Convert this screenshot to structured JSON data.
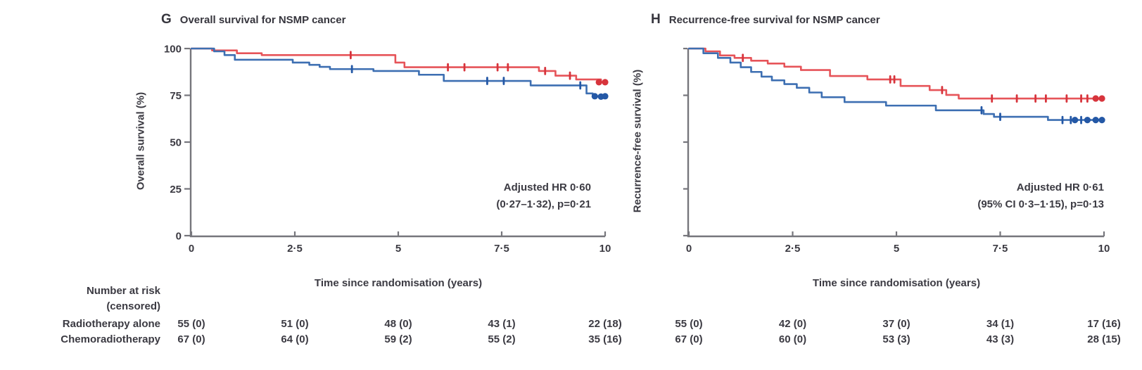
{
  "figure": {
    "xlabel": "Time since randomisation (years)",
    "risk_header_line1": "Number at risk",
    "risk_header_line2": "(censored)",
    "risk_rows": [
      "Radiotherapy alone",
      "Chemoradiotherapy"
    ]
  },
  "colors": {
    "red": "#e65459",
    "red_dark": "#d7343c",
    "blue": "#3d6fb2",
    "blue_dark": "#2458a6",
    "axis": "#76767c",
    "text": "#3b3a42"
  },
  "chart_data": [
    {
      "type": "line",
      "panel_letter": "G",
      "title": "Overall survival for NSMP cancer",
      "ylabel": "Overall survival (%)",
      "xlabel": "Time since randomisation (years)",
      "xlim": [
        0,
        10
      ],
      "ylim": [
        0,
        100
      ],
      "grid": false,
      "xticks": [
        {
          "v": 0,
          "label": "0"
        },
        {
          "v": 2.5,
          "label": "2·5"
        },
        {
          "v": 5,
          "label": "5"
        },
        {
          "v": 7.5,
          "label": "7·5"
        },
        {
          "v": 10,
          "label": "10"
        }
      ],
      "yticks": [
        {
          "v": 100,
          "label": "100"
        },
        {
          "v": 75,
          "label": "75"
        },
        {
          "v": 50,
          "label": "50"
        },
        {
          "v": 25,
          "label": "25"
        },
        {
          "v": 0,
          "label": "0"
        }
      ],
      "show_ytick_labels": true,
      "annotation": [
        "Adjusted HR 0·60",
        "(0·27–1·32), p=0·21"
      ],
      "series": [
        {
          "name": "Radiotherapy alone",
          "color": "red",
          "points": [
            [
              0,
              100
            ],
            [
              0.5,
              99
            ],
            [
              1.1,
              97.5
            ],
            [
              1.7,
              96.5
            ],
            [
              4.93,
              92.5
            ],
            [
              5.15,
              90
            ],
            [
              8.4,
              88
            ],
            [
              8.8,
              85.5
            ],
            [
              9.3,
              83.5
            ],
            [
              9.9,
              82
            ],
            [
              10,
              82
            ]
          ],
          "censors": [
            [
              3.85,
              96.5
            ],
            [
              6.2,
              90
            ],
            [
              6.6,
              90
            ],
            [
              7.4,
              90
            ],
            [
              7.65,
              90
            ],
            [
              8.55,
              88
            ],
            [
              9.15,
              85.5
            ]
          ],
          "end_dots": [
            [
              9.85,
              82
            ],
            [
              10,
              82
            ]
          ]
        },
        {
          "name": "Chemoradiotherapy",
          "color": "blue",
          "points": [
            [
              0,
              100
            ],
            [
              0.55,
              98.5
            ],
            [
              0.8,
              96.5
            ],
            [
              1.05,
              94
            ],
            [
              2.45,
              92.5
            ],
            [
              2.85,
              91.3
            ],
            [
              3.1,
              90.2
            ],
            [
              3.35,
              89
            ],
            [
              4.4,
              88
            ],
            [
              5.5,
              86
            ],
            [
              6.1,
              82.7
            ],
            [
              8.2,
              80.3
            ],
            [
              9.55,
              76
            ],
            [
              9.7,
              74.5
            ],
            [
              10,
              74.5
            ]
          ],
          "censors": [
            [
              3.88,
              89
            ],
            [
              7.15,
              82.7
            ],
            [
              7.55,
              82.7
            ],
            [
              9.4,
              80.3
            ]
          ],
          "end_dots": [
            [
              9.75,
              74.5
            ],
            [
              9.9,
              74.3
            ],
            [
              10,
              74.5
            ]
          ]
        }
      ],
      "at_risk": [
        [
          "55 (0)",
          "51 (0)",
          "48 (0)",
          "43 (1)",
          "22 (18)"
        ],
        [
          "67 (0)",
          "64 (0)",
          "59 (2)",
          "55 (2)",
          "35 (16)"
        ]
      ]
    },
    {
      "type": "line",
      "panel_letter": "H",
      "title": "Recurrence-free survival for NSMP cancer",
      "ylabel": "Recurrence-free survival (%)",
      "xlabel": "Time since randomisation (years)",
      "xlim": [
        0,
        10
      ],
      "ylim": [
        0,
        100
      ],
      "grid": false,
      "xticks": [
        {
          "v": 0,
          "label": "0"
        },
        {
          "v": 2.5,
          "label": "2·5"
        },
        {
          "v": 5,
          "label": "5"
        },
        {
          "v": 7.5,
          "label": "7·5"
        },
        {
          "v": 10,
          "label": "10"
        }
      ],
      "yticks": [
        {
          "v": 100,
          "label": "100"
        },
        {
          "v": 75,
          "label": "75"
        },
        {
          "v": 50,
          "label": "50"
        },
        {
          "v": 25,
          "label": "25"
        },
        {
          "v": 0,
          "label": "0"
        }
      ],
      "show_ytick_labels": false,
      "annotation": [
        "Adjusted HR 0·61",
        "(95% CI 0·3–1·15), p=0·13"
      ],
      "series": [
        {
          "name": "Radiotherapy alone",
          "color": "red",
          "points": [
            [
              0,
              100
            ],
            [
              0.4,
              98.5
            ],
            [
              0.75,
              96.3
            ],
            [
              1.1,
              95
            ],
            [
              1.5,
              93.5
            ],
            [
              1.9,
              92
            ],
            [
              2.3,
              90.3
            ],
            [
              2.7,
              88.5
            ],
            [
              3.4,
              85.3
            ],
            [
              4.3,
              83.5
            ],
            [
              5.1,
              80
            ],
            [
              5.8,
              77.8
            ],
            [
              6.2,
              75.2
            ],
            [
              6.5,
              73.3
            ],
            [
              10,
              73.3
            ]
          ],
          "censors": [
            [
              1.3,
              95
            ],
            [
              4.85,
              83.5
            ],
            [
              4.95,
              83.5
            ],
            [
              6.1,
              77.8
            ],
            [
              7.3,
              73.3
            ],
            [
              7.9,
              73.3
            ],
            [
              8.35,
              73.3
            ],
            [
              8.6,
              73.3
            ],
            [
              9.1,
              73.3
            ],
            [
              9.45,
              73.3
            ],
            [
              9.6,
              73.3
            ]
          ],
          "end_dots": [
            [
              9.8,
              73.3
            ],
            [
              9.95,
              73.3
            ]
          ]
        },
        {
          "name": "Chemoradiotherapy",
          "color": "blue",
          "points": [
            [
              0,
              100
            ],
            [
              0.35,
              97.5
            ],
            [
              0.7,
              95
            ],
            [
              1.0,
              92.5
            ],
            [
              1.25,
              90
            ],
            [
              1.5,
              87.5
            ],
            [
              1.75,
              85
            ],
            [
              2.0,
              83
            ],
            [
              2.3,
              81
            ],
            [
              2.6,
              79
            ],
            [
              2.9,
              76.5
            ],
            [
              3.2,
              74
            ],
            [
              3.75,
              71.4
            ],
            [
              4.75,
              69.5
            ],
            [
              5.95,
              67
            ],
            [
              7.1,
              65
            ],
            [
              7.35,
              63.5
            ],
            [
              8.65,
              61.8
            ],
            [
              10,
              61.8
            ]
          ],
          "censors": [
            [
              7.05,
              67
            ],
            [
              7.5,
              63.5
            ],
            [
              9.0,
              61.8
            ],
            [
              9.2,
              61.8
            ],
            [
              9.45,
              61.8
            ]
          ],
          "end_dots": [
            [
              9.3,
              61.8
            ],
            [
              9.6,
              61.8
            ],
            [
              9.8,
              61.8
            ],
            [
              9.95,
              61.8
            ]
          ]
        }
      ],
      "at_risk": [
        [
          "55 (0)",
          "42 (0)",
          "37 (0)",
          "34 (1)",
          "17 (16)"
        ],
        [
          "67 (0)",
          "60 (0)",
          "53 (3)",
          "43 (3)",
          "28 (15)"
        ]
      ]
    }
  ]
}
